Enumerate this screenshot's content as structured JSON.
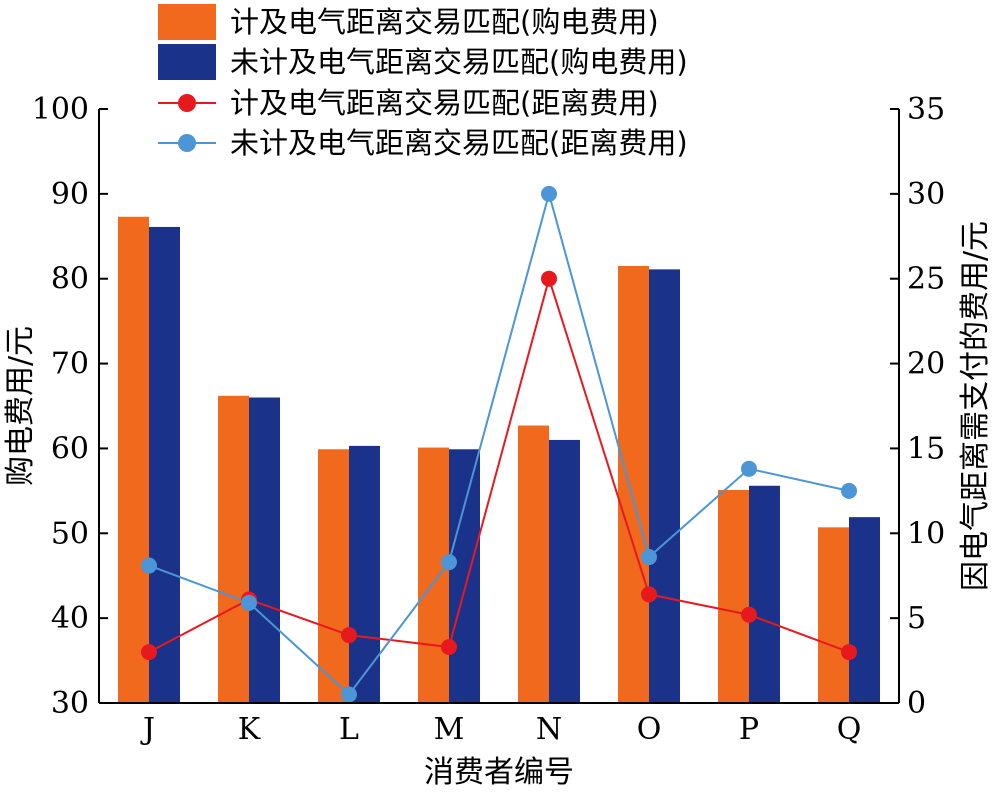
{
  "chart_data": {
    "type": "bar",
    "categories": [
      "J",
      "K",
      "L",
      "M",
      "N",
      "O",
      "P",
      "Q"
    ],
    "xlabel": "消费者编号",
    "ylabel_left": "购电费用/元",
    "ylabel_right": "因电气距离需支付的费用/元",
    "ylim_left": [
      30,
      100
    ],
    "yticks_left": [
      30,
      40,
      50,
      60,
      70,
      80,
      90,
      100
    ],
    "ylim_right": [
      0,
      35
    ],
    "yticks_right": [
      0,
      5,
      10,
      15,
      20,
      25,
      30,
      35
    ],
    "grid": false,
    "legend_position": "top",
    "bar_series": [
      {
        "name": "计及电气距离交易匹配(购电费用)",
        "color": "#F0691C",
        "values": [
          87.3,
          66.2,
          59.9,
          60.1,
          62.7,
          81.5,
          55.1,
          50.7
        ]
      },
      {
        "name": "未计及电气距离交易匹配(购电费用)",
        "color": "#1A3289",
        "values": [
          86.1,
          66.0,
          60.3,
          59.9,
          61.0,
          81.1,
          55.6,
          51.9
        ]
      }
    ],
    "line_series": [
      {
        "name": "计及电气距离交易匹配(距离费用)",
        "color": "#E8191E",
        "values": [
          3.0,
          6.1,
          4.0,
          3.3,
          25.0,
          6.4,
          5.2,
          3.0
        ]
      },
      {
        "name": "未计及电气距离交易匹配(距离费用)",
        "color": "#4C95D6",
        "values": [
          8.1,
          5.9,
          0.5,
          8.3,
          30.0,
          8.6,
          13.8,
          12.5
        ]
      }
    ]
  }
}
